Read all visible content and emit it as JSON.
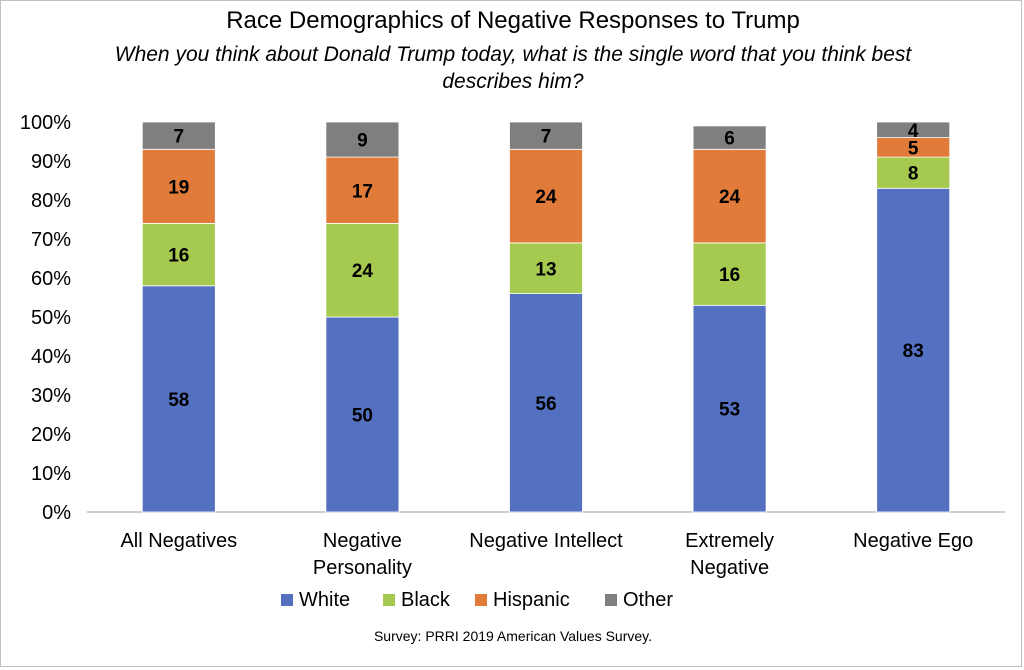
{
  "title": "Race Demographics of Negative Responses to Trump",
  "subtitle": "When you think about Donald Trump today, what is the single word that you think best describes him?",
  "source": "Survey: PRRI 2019 American Values Survey.",
  "chart_data": {
    "type": "bar",
    "stacked": true,
    "title": "Race Demographics of Negative Responses to Trump",
    "subtitle": "When you think about Donald Trump today, what is the single word that you think best describes him?",
    "categories": [
      [
        "All Negatives"
      ],
      [
        "Negative",
        "Personality"
      ],
      [
        "Negative Intellect"
      ],
      [
        "Extremely",
        "Negative"
      ],
      [
        "Negative Ego"
      ]
    ],
    "series": [
      {
        "name": "White",
        "color": "#5470c1",
        "values": [
          58,
          50,
          56,
          53,
          83
        ]
      },
      {
        "name": "Black",
        "color": "#a6c94f",
        "values": [
          16,
          24,
          13,
          16,
          8
        ]
      },
      {
        "name": "Hispanic",
        "color": "#e07b3a",
        "values": [
          19,
          17,
          24,
          24,
          5
        ]
      },
      {
        "name": "Other",
        "color": "#7f7f7f",
        "values": [
          7,
          9,
          7,
          6,
          4
        ]
      }
    ],
    "yaxis": {
      "min": 0,
      "max": 100,
      "step": 10,
      "format": "percent"
    },
    "ytick_labels": [
      "0%",
      "10%",
      "20%",
      "30%",
      "40%",
      "50%",
      "60%",
      "70%",
      "80%",
      "90%",
      "100%"
    ],
    "legend_position": "bottom",
    "grid": false,
    "data_labels": true
  }
}
